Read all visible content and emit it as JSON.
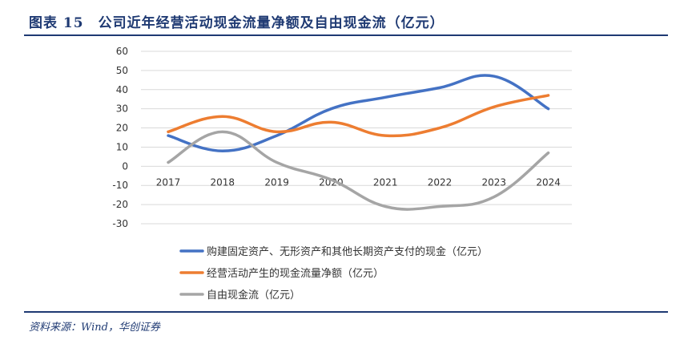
{
  "figure": {
    "title": "图表 15　公司近年经营活动现金流量净额及自由现金流（亿元）",
    "source": "资料来源：Wind，华创证券"
  },
  "chart_data": {
    "type": "line",
    "x": [
      "2017",
      "2018",
      "2019",
      "2020",
      "2021",
      "2022",
      "2023",
      "2024"
    ],
    "yticks": [
      60,
      50,
      40,
      30,
      20,
      10,
      0,
      -10,
      -20,
      -30
    ],
    "ylim": [
      -30,
      60
    ],
    "grid": true,
    "legend_position": "bottom",
    "series": [
      {
        "name": "购建固定资产、无形资产和其他长期资产支付的现金（亿元）",
        "values": [
          16,
          8,
          16,
          30,
          36,
          41,
          47,
          30
        ],
        "color": "#4472c4"
      },
      {
        "name": "经营活动产生的现金流量净额（亿元）",
        "values": [
          18,
          26,
          18,
          23,
          16,
          20,
          31,
          37
        ],
        "color": "#ed7d31"
      },
      {
        "name": "自由现金流（亿元）",
        "values": [
          2,
          18,
          2,
          -7,
          -21,
          -21,
          -16,
          7
        ],
        "color": "#a5a5a5"
      }
    ]
  }
}
